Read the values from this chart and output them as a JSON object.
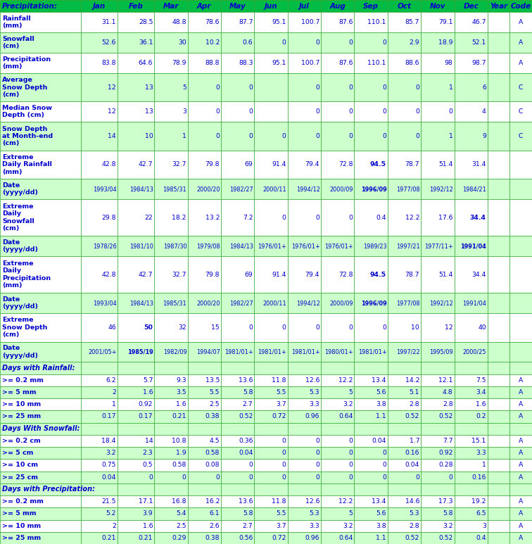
{
  "header_row": [
    "Precipitation:",
    "Jan",
    "Feb",
    "Mar",
    "Apr",
    "May",
    "Jun",
    "Jul",
    "Aug",
    "Sep",
    "Oct",
    "Nov",
    "Dec",
    "Year",
    "Code"
  ],
  "rows": [
    {
      "label": "Rainfall\n(mm)",
      "values": [
        "31.1",
        "28.5",
        "48.8",
        "78.6",
        "87.7",
        "95.1",
        "100.7",
        "87.6",
        "110.1",
        "85.7",
        "79.1",
        "46.7",
        "",
        "A"
      ],
      "bold_vals": [],
      "row_color": "white",
      "label_lines": 2
    },
    {
      "label": "Snowfall\n(cm)",
      "values": [
        "52.6",
        "36.1",
        "30",
        "10.2",
        "0.6",
        "0",
        "0",
        "0",
        "0",
        "2.9",
        "18.9",
        "52.1",
        "",
        "A"
      ],
      "bold_vals": [],
      "row_color": "#ccffcc",
      "label_lines": 2
    },
    {
      "label": "Precipitation\n(mm)",
      "values": [
        "83.8",
        "64.6",
        "78.9",
        "88.8",
        "88.3",
        "95.1",
        "100.7",
        "87.6",
        "110.1",
        "88.6",
        "98",
        "98.7",
        "",
        "A"
      ],
      "bold_vals": [],
      "row_color": "white",
      "label_lines": 2
    },
    {
      "label": "Average\nSnow Depth\n(cm)",
      "values": [
        "12",
        "13",
        "5",
        "0",
        "0",
        "",
        "0",
        "0",
        "0",
        "0",
        "1",
        "6",
        "",
        "C"
      ],
      "bold_vals": [],
      "row_color": "#ccffcc",
      "label_lines": 3
    },
    {
      "label": "Median Snow\nDepth (cm)",
      "values": [
        "12",
        "13",
        "3",
        "0",
        "0",
        "",
        "0",
        "0",
        "0",
        "0",
        "0",
        "4",
        "",
        "C"
      ],
      "bold_vals": [],
      "row_color": "white",
      "label_lines": 2
    },
    {
      "label": "Snow Depth\nat Month-end\n(cm)",
      "values": [
        "14",
        "10",
        "1",
        "0",
        "0",
        "0",
        "0",
        "0",
        "0",
        "0",
        "1",
        "9",
        "",
        "C"
      ],
      "bold_vals": [],
      "row_color": "#ccffcc",
      "label_lines": 3
    },
    {
      "label": "Extreme\nDaily Rainfall\n(mm)",
      "values": [
        "42.8",
        "42.7",
        "32.7",
        "79.8",
        "69",
        "91.4",
        "79.4",
        "72.8",
        "94.5",
        "78.7",
        "51.4",
        "31.4",
        "",
        ""
      ],
      "bold_vals": [
        8
      ],
      "row_color": "white",
      "label_lines": 3
    },
    {
      "label": "Date\n(yyyy/dd)",
      "values": [
        "1993/04",
        "1984/13",
        "1985/31",
        "2000/20",
        "1982/27",
        "2000/11",
        "1994/12",
        "2000/09",
        "1996/09",
        "1977/08",
        "1992/12",
        "1984/21",
        "",
        ""
      ],
      "bold_vals": [
        8
      ],
      "row_color": "#ccffcc",
      "label_lines": 2
    },
    {
      "label": "Extreme\nDaily\nSnowfall\n(cm)",
      "values": [
        "29.8",
        "22",
        "18.2",
        "13.2",
        "7.2",
        "0",
        "0",
        "0",
        "0.4",
        "12.2",
        "17.6",
        "34.4",
        "",
        ""
      ],
      "bold_vals": [
        11
      ],
      "row_color": "white",
      "label_lines": 4
    },
    {
      "label": "Date\n(yyyy/dd)",
      "values": [
        "1978/26",
        "1981/10",
        "1987/30",
        "1979/08",
        "1984/13",
        "1976/01+",
        "1976/01+",
        "1976/01+",
        "1989/23",
        "1997/21",
        "1977/11+",
        "1991/04",
        "",
        ""
      ],
      "bold_vals": [
        11
      ],
      "row_color": "#ccffcc",
      "label_lines": 2
    },
    {
      "label": "Extreme\nDaily\nPrecipitation\n(mm)",
      "values": [
        "42.8",
        "42.7",
        "32.7",
        "79.8",
        "69",
        "91.4",
        "79.4",
        "72.8",
        "94.5",
        "78.7",
        "51.4",
        "34.4",
        "",
        ""
      ],
      "bold_vals": [
        8
      ],
      "row_color": "white",
      "label_lines": 4
    },
    {
      "label": "Date\n(yyyy/dd)",
      "values": [
        "1993/04",
        "1984/13",
        "1985/31",
        "2000/20",
        "1982/27",
        "2000/11",
        "1994/12",
        "2000/09",
        "1996/09",
        "1977/08",
        "1992/12",
        "1991/04",
        "",
        ""
      ],
      "bold_vals": [
        8
      ],
      "row_color": "#ccffcc",
      "label_lines": 2
    },
    {
      "label": "Extreme\nSnow Depth\n(cm)",
      "values": [
        "46",
        "50",
        "32",
        "15",
        "0",
        "0",
        "0",
        "0",
        "0",
        "10",
        "12",
        "40",
        "",
        ""
      ],
      "bold_vals": [
        1
      ],
      "row_color": "white",
      "label_lines": 3
    },
    {
      "label": "Date\n(yyyy/dd)",
      "values": [
        "2001/05+",
        "1985/19",
        "1982/09",
        "1994/07",
        "1981/01+",
        "1981/01+",
        "1981/01+",
        "1980/01+",
        "1981/01+",
        "1997/22",
        "1995/09",
        "2000/25",
        "",
        ""
      ],
      "bold_vals": [
        1
      ],
      "row_color": "#ccffcc",
      "label_lines": 2
    },
    {
      "label": "Days with Rainfall:",
      "values": [
        "",
        "",
        "",
        "",
        "",
        "",
        "",
        "",
        "",
        "",
        "",
        "",
        "",
        ""
      ],
      "bold_vals": [],
      "row_color": "#ccffcc",
      "section_header": true,
      "label_lines": 1
    },
    {
      "label": ">= 0.2 mm",
      "values": [
        "6.2",
        "5.7",
        "9.3",
        "13.5",
        "13.6",
        "11.8",
        "12.6",
        "12.2",
        "13.4",
        "14.2",
        "12.1",
        "7.5",
        "",
        "A"
      ],
      "bold_vals": [],
      "row_color": "white",
      "label_lines": 1
    },
    {
      "label": ">= 5 mm",
      "values": [
        "2",
        "1.6",
        "3.5",
        "5.5",
        "5.8",
        "5.5",
        "5.3",
        "5",
        "5.6",
        "5.1",
        "4.8",
        "3.4",
        "",
        "A"
      ],
      "bold_vals": [],
      "row_color": "#ccffcc",
      "label_lines": 1
    },
    {
      "label": ">= 10 mm",
      "values": [
        "1",
        "0.92",
        "1.6",
        "2.5",
        "2.7",
        "3.7",
        "3.3",
        "3.2",
        "3.8",
        "2.8",
        "2.8",
        "1.6",
        "",
        "A"
      ],
      "bold_vals": [],
      "row_color": "white",
      "label_lines": 1
    },
    {
      "label": ">= 25 mm",
      "values": [
        "0.17",
        "0.17",
        "0.21",
        "0.38",
        "0.52",
        "0.72",
        "0.96",
        "0.64",
        "1.1",
        "0.52",
        "0.52",
        "0.2",
        "",
        "A"
      ],
      "bold_vals": [],
      "row_color": "#ccffcc",
      "label_lines": 1
    },
    {
      "label": "Days With Snowfall:",
      "values": [
        "",
        "",
        "",
        "",
        "",
        "",
        "",
        "",
        "",
        "",
        "",
        "",
        "",
        ""
      ],
      "bold_vals": [],
      "row_color": "#ccffcc",
      "section_header": true,
      "label_lines": 1
    },
    {
      "label": ">= 0.2 cm",
      "values": [
        "18.4",
        "14",
        "10.8",
        "4.5",
        "0.36",
        "0",
        "0",
        "0",
        "0.04",
        "1.7",
        "7.7",
        "15.1",
        "",
        "A"
      ],
      "bold_vals": [],
      "row_color": "white",
      "label_lines": 1
    },
    {
      "label": ">= 5 cm",
      "values": [
        "3.2",
        "2.3",
        "1.9",
        "0.58",
        "0.04",
        "0",
        "0",
        "0",
        "0",
        "0.16",
        "0.92",
        "3.3",
        "",
        "A"
      ],
      "bold_vals": [],
      "row_color": "#ccffcc",
      "label_lines": 1
    },
    {
      "label": ">= 10 cm",
      "values": [
        "0.75",
        "0.5",
        "0.58",
        "0.08",
        "0",
        "0",
        "0",
        "0",
        "0",
        "0.04",
        "0.28",
        "1",
        "",
        "A"
      ],
      "bold_vals": [],
      "row_color": "white",
      "label_lines": 1
    },
    {
      "label": ">= 25 cm",
      "values": [
        "0.04",
        "0",
        "0",
        "0",
        "0",
        "0",
        "0",
        "0",
        "0",
        "0",
        "0",
        "0.16",
        "",
        "A"
      ],
      "bold_vals": [],
      "row_color": "#ccffcc",
      "label_lines": 1
    },
    {
      "label": "Days with Precipitation:",
      "values": [
        "",
        "",
        "",
        "",
        "",
        "",
        "",
        "",
        "",
        "",
        "",
        "",
        "",
        ""
      ],
      "bold_vals": [],
      "row_color": "#ccffcc",
      "section_header": true,
      "label_lines": 1
    },
    {
      "label": ">= 0.2 mm",
      "values": [
        "21.5",
        "17.1",
        "16.8",
        "16.2",
        "13.6",
        "11.8",
        "12.6",
        "12.2",
        "13.4",
        "14.6",
        "17.3",
        "19.2",
        "",
        "A"
      ],
      "bold_vals": [],
      "row_color": "white",
      "label_lines": 1
    },
    {
      "label": ">= 5 mm",
      "values": [
        "5.2",
        "3.9",
        "5.4",
        "6.1",
        "5.8",
        "5.5",
        "5.3",
        "5",
        "5.6",
        "5.3",
        "5.8",
        "6.5",
        "",
        "A"
      ],
      "bold_vals": [],
      "row_color": "#ccffcc",
      "label_lines": 1
    },
    {
      "label": ">= 10 mm",
      "values": [
        "2",
        "1.6",
        "2.5",
        "2.6",
        "2.7",
        "3.7",
        "3.3",
        "3.2",
        "3.8",
        "2.8",
        "3.2",
        "3",
        "",
        "A"
      ],
      "bold_vals": [],
      "row_color": "white",
      "label_lines": 1
    },
    {
      "label": ">= 25 mm",
      "values": [
        "0.21",
        "0.21",
        "0.29",
        "0.38",
        "0.56",
        "0.72",
        "0.96",
        "0.64",
        "1.1",
        "0.52",
        "0.52",
        "0.4",
        "",
        "A"
      ],
      "bold_vals": [],
      "row_color": "#ccffcc",
      "label_lines": 1
    }
  ],
  "header_bg": "#00bb44",
  "header_text_color": "#0000cc",
  "light_green": "#ccffcc",
  "label_color": "#0000cc",
  "value_color": "#0000cc",
  "section_header_color": "#0000cc",
  "grid_color": "#33aa33",
  "font_size": 7.0,
  "header_font_size": 7.5
}
